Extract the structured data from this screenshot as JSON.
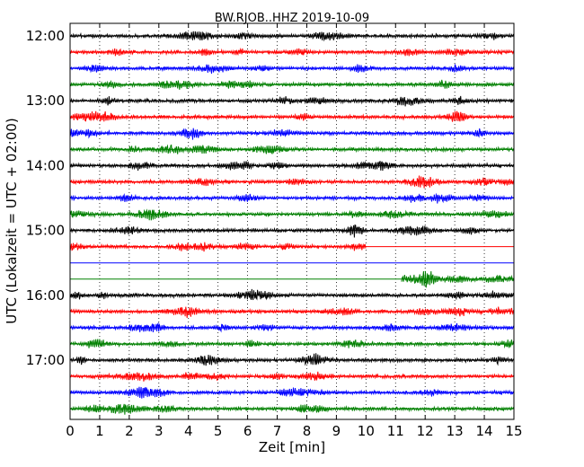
{
  "chart_data": {
    "type": "line",
    "title": "BW.RJOB..HHZ 2019-10-09",
    "xlabel": "Zeit  [min]",
    "ylabel": "UTC (Lokalzeit = UTC + 02:00)",
    "xlim": [
      0,
      15
    ],
    "x_ticks": [
      "0",
      "1",
      "2",
      "3",
      "4",
      "5",
      "6",
      "7",
      "8",
      "9",
      "10",
      "11",
      "12",
      "13",
      "14",
      "15"
    ],
    "y_tick_labels": [
      "12:00",
      "13:00",
      "14:00",
      "15:00",
      "16:00",
      "17:00"
    ],
    "grid": "vertical dotted at each minute",
    "traces": [
      {
        "start": "12:00",
        "color": "#000000",
        "data_from_min": 0,
        "data_to_min": 15
      },
      {
        "start": "12:15",
        "color": "#ff0000",
        "data_from_min": 0,
        "data_to_min": 15
      },
      {
        "start": "12:30",
        "color": "#0000ff",
        "data_from_min": 0,
        "data_to_min": 15
      },
      {
        "start": "12:45",
        "color": "#008000",
        "data_from_min": 0,
        "data_to_min": 15
      },
      {
        "start": "13:00",
        "color": "#000000",
        "data_from_min": 0,
        "data_to_min": 15
      },
      {
        "start": "13:15",
        "color": "#ff0000",
        "data_from_min": 0,
        "data_to_min": 15
      },
      {
        "start": "13:30",
        "color": "#0000ff",
        "data_from_min": 0,
        "data_to_min": 15
      },
      {
        "start": "13:45",
        "color": "#008000",
        "data_from_min": 0,
        "data_to_min": 15
      },
      {
        "start": "14:00",
        "color": "#000000",
        "data_from_min": 0,
        "data_to_min": 15
      },
      {
        "start": "14:15",
        "color": "#ff0000",
        "data_from_min": 0,
        "data_to_min": 15
      },
      {
        "start": "14:30",
        "color": "#0000ff",
        "data_from_min": 0,
        "data_to_min": 15
      },
      {
        "start": "14:45",
        "color": "#008000",
        "data_from_min": 0,
        "data_to_min": 15
      },
      {
        "start": "15:00",
        "color": "#000000",
        "data_from_min": 0,
        "data_to_min": 15
      },
      {
        "start": "15:15",
        "color": "#ff0000",
        "data_from_min": 0,
        "data_to_min": 10.0
      },
      {
        "start": "15:30",
        "color": "#0000ff",
        "data_from_min": 0,
        "data_to_min": 0
      },
      {
        "start": "15:45",
        "color": "#008000",
        "data_from_min": 11.2,
        "data_to_min": 15
      },
      {
        "start": "16:00",
        "color": "#000000",
        "data_from_min": 0,
        "data_to_min": 15
      },
      {
        "start": "16:15",
        "color": "#ff0000",
        "data_from_min": 0,
        "data_to_min": 15
      },
      {
        "start": "16:30",
        "color": "#0000ff",
        "data_from_min": 0,
        "data_to_min": 15
      },
      {
        "start": "16:45",
        "color": "#008000",
        "data_from_min": 0,
        "data_to_min": 15
      },
      {
        "start": "17:00",
        "color": "#000000",
        "data_from_min": 0,
        "data_to_min": 15
      },
      {
        "start": "17:15",
        "color": "#ff0000",
        "data_from_min": 0,
        "data_to_min": 15
      },
      {
        "start": "17:30",
        "color": "#0000ff",
        "data_from_min": 0,
        "data_to_min": 15
      },
      {
        "start": "17:45",
        "color": "#008000",
        "data_from_min": 0,
        "data_to_min": 15
      }
    ]
  }
}
